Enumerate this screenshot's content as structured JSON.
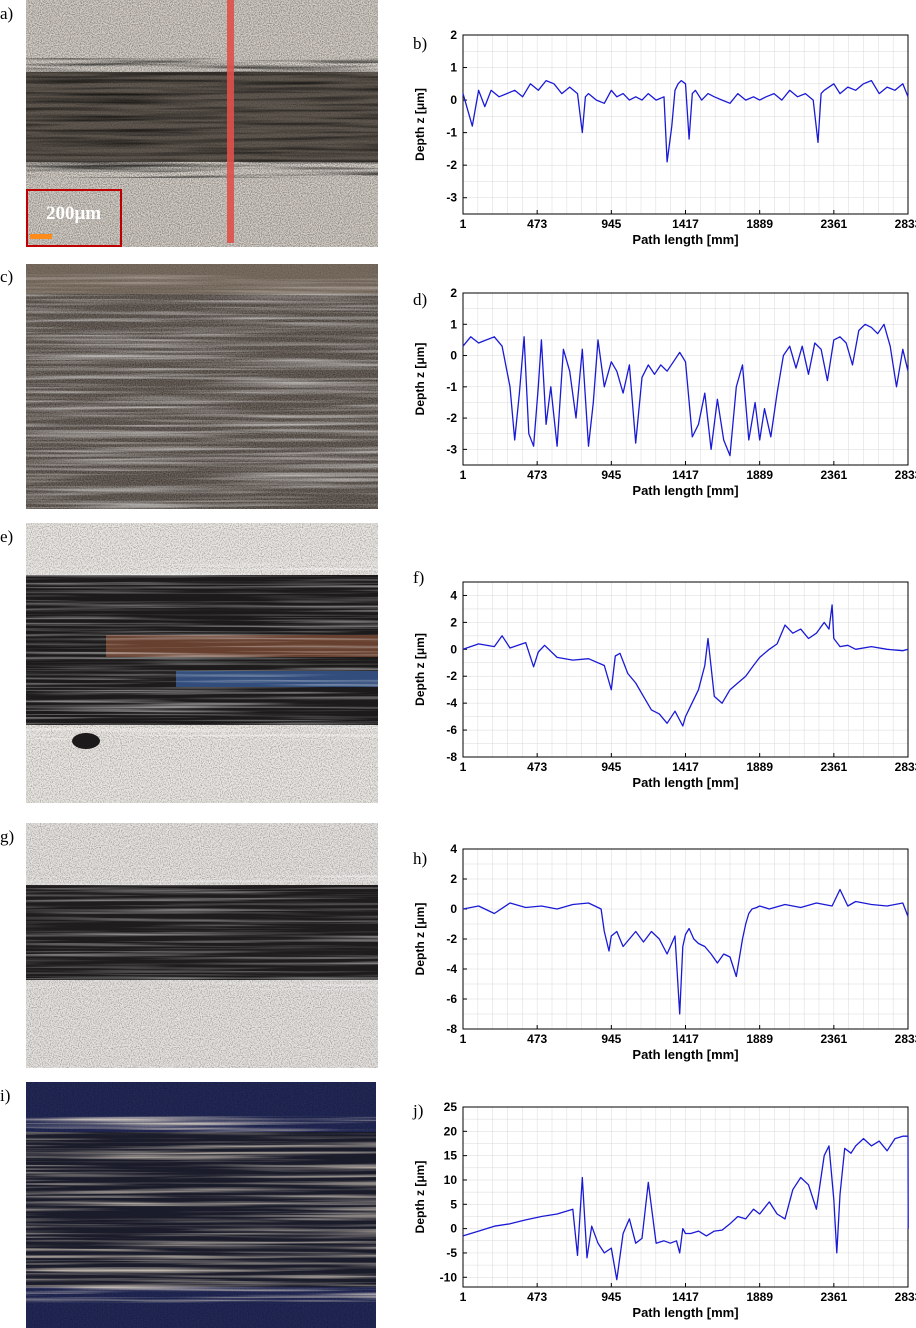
{
  "panels": [
    {
      "img_letter": "a)",
      "chart_letter": "b)"
    },
    {
      "img_letter": "c)",
      "chart_letter": "d)"
    },
    {
      "img_letter": "e)",
      "chart_letter": "f)"
    },
    {
      "img_letter": "g)",
      "chart_letter": "h)"
    },
    {
      "img_letter": "i)",
      "chart_letter": "j)"
    }
  ],
  "scale_label": "200μm",
  "colors": {
    "line": "#1a1ad6",
    "grid": "#d9d9d9",
    "scalebox": "#c00000",
    "section_line": "#e0504a"
  },
  "chart_data": [
    {
      "type": "line",
      "xlabel": "Path length [mm]",
      "ylabel": "Depth z [μm]",
      "xticks": [
        "1",
        "473",
        "945",
        "1417",
        "1889",
        "2361",
        "2833"
      ],
      "yticks": [
        2,
        1,
        0,
        -1,
        -2,
        -3
      ],
      "ylim": [
        -3.5,
        2
      ],
      "xlim": [
        1,
        2833
      ],
      "series": [
        {
          "x": [
            1,
            60,
            100,
            140,
            180,
            230,
            280,
            330,
            380,
            430,
            480,
            530,
            580,
            630,
            680,
            730,
            760,
            780,
            800,
            850,
            900,
            945,
            980,
            1020,
            1060,
            1100,
            1140,
            1180,
            1230,
            1280,
            1300,
            1330,
            1350,
            1370,
            1390,
            1417,
            1440,
            1460,
            1480,
            1520,
            1560,
            1600,
            1650,
            1700,
            1750,
            1800,
            1850,
            1889,
            1930,
            1980,
            2030,
            2080,
            2130,
            2180,
            2230,
            2260,
            2280,
            2300,
            2330,
            2361,
            2400,
            2450,
            2500,
            2550,
            2600,
            2650,
            2700,
            2750,
            2800,
            2833
          ],
          "y": [
            0.2,
            -0.8,
            0.3,
            -0.2,
            0.3,
            0.1,
            0.2,
            0.3,
            0.1,
            0.5,
            0.3,
            0.6,
            0.5,
            0.2,
            0.4,
            0.2,
            -1.0,
            0.1,
            0.2,
            0.0,
            -0.1,
            0.3,
            0.1,
            0.2,
            0.0,
            0.1,
            0.0,
            0.2,
            0.0,
            0.1,
            -1.9,
            -0.8,
            0.3,
            0.5,
            0.6,
            0.5,
            -1.2,
            0.2,
            0.3,
            0.0,
            0.2,
            0.1,
            0.0,
            -0.1,
            0.2,
            0.0,
            0.1,
            0.0,
            0.1,
            0.2,
            0.0,
            0.3,
            0.1,
            0.2,
            0.0,
            -1.3,
            0.2,
            0.3,
            0.4,
            0.5,
            0.2,
            0.4,
            0.3,
            0.5,
            0.6,
            0.2,
            0.4,
            0.3,
            0.5,
            0.1
          ]
        }
      ]
    },
    {
      "type": "line",
      "xlabel": "Path length [mm]",
      "ylabel": "Depth z [μm]",
      "xticks": [
        "1",
        "473",
        "945",
        "1417",
        "1889",
        "2361",
        "2833"
      ],
      "yticks": [
        2,
        1,
        0,
        -1,
        -2,
        -3
      ],
      "ylim": [
        -3.5,
        2
      ],
      "xlim": [
        1,
        2833
      ],
      "series": [
        {
          "x": [
            1,
            50,
            100,
            150,
            200,
            250,
            300,
            330,
            360,
            390,
            420,
            450,
            480,
            500,
            530,
            560,
            600,
            640,
            680,
            720,
            760,
            800,
            830,
            860,
            900,
            945,
            980,
            1020,
            1060,
            1100,
            1140,
            1180,
            1220,
            1260,
            1300,
            1340,
            1380,
            1417,
            1460,
            1500,
            1540,
            1580,
            1620,
            1660,
            1700,
            1740,
            1780,
            1820,
            1860,
            1889,
            1920,
            1960,
            2000,
            2040,
            2080,
            2120,
            2160,
            2200,
            2240,
            2280,
            2320,
            2361,
            2400,
            2440,
            2480,
            2520,
            2560,
            2600,
            2640,
            2680,
            2720,
            2760,
            2800,
            2833
          ],
          "y": [
            0.3,
            0.6,
            0.4,
            0.5,
            0.6,
            0.3,
            -1.0,
            -2.7,
            -1.2,
            0.6,
            -2.5,
            -2.9,
            -1.0,
            0.5,
            -2.2,
            -1.0,
            -2.9,
            0.2,
            -0.5,
            -2.0,
            0.2,
            -2.9,
            -1.5,
            0.5,
            -1.0,
            -0.2,
            -0.5,
            -1.2,
            -0.3,
            -2.8,
            -0.7,
            -0.3,
            -0.6,
            -0.3,
            -0.5,
            -0.2,
            0.1,
            -0.2,
            -2.6,
            -2.2,
            -1.2,
            -3.0,
            -1.4,
            -2.7,
            -3.2,
            -1.0,
            -0.3,
            -2.7,
            -1.5,
            -2.7,
            -1.7,
            -2.6,
            -1.2,
            0.0,
            0.3,
            -0.4,
            0.3,
            -0.6,
            0.4,
            0.2,
            -0.8,
            0.5,
            0.6,
            0.4,
            -0.3,
            0.8,
            1.0,
            0.9,
            0.7,
            1.0,
            0.3,
            -1.0,
            0.2,
            -0.5
          ]
        }
      ]
    },
    {
      "type": "line",
      "xlabel": "Path length [mm]",
      "ylabel": "Depth z [μm]",
      "xticks": [
        "1",
        "473",
        "945",
        "1417",
        "1889",
        "2361",
        "2833"
      ],
      "yticks": [
        4,
        2,
        0,
        -2,
        -4,
        -6,
        -8
      ],
      "ylim": [
        -8,
        5
      ],
      "xlim": [
        1,
        2833
      ],
      "series": [
        {
          "x": [
            1,
            100,
            200,
            250,
            300,
            400,
            450,
            480,
            520,
            600,
            700,
            800,
            900,
            945,
            970,
            1000,
            1050,
            1100,
            1150,
            1200,
            1250,
            1300,
            1350,
            1400,
            1417,
            1450,
            1500,
            1540,
            1560,
            1600,
            1650,
            1700,
            1750,
            1800,
            1850,
            1889,
            1950,
            2000,
            2050,
            2100,
            2150,
            2200,
            2250,
            2300,
            2330,
            2350,
            2361,
            2400,
            2450,
            2500,
            2600,
            2700,
            2800,
            2833
          ],
          "y": [
            0.0,
            0.4,
            0.2,
            1.0,
            0.1,
            0.5,
            -1.3,
            -0.2,
            0.3,
            -0.6,
            -0.8,
            -0.7,
            -1.2,
            -3.0,
            -0.5,
            -0.3,
            -1.8,
            -2.5,
            -3.5,
            -4.5,
            -4.8,
            -5.5,
            -4.6,
            -5.7,
            -5.0,
            -4.2,
            -3.0,
            -1.2,
            0.8,
            -3.5,
            -4.0,
            -3.0,
            -2.5,
            -2.0,
            -1.2,
            -0.6,
            0.0,
            0.4,
            1.8,
            1.2,
            1.5,
            0.8,
            1.2,
            2.0,
            1.5,
            3.3,
            0.8,
            0.2,
            0.3,
            0.0,
            0.2,
            0.0,
            -0.1,
            0.0
          ]
        }
      ]
    },
    {
      "type": "line",
      "xlabel": "Path length [mm]",
      "ylabel": "Depth z [μm]",
      "xticks": [
        "1",
        "473",
        "945",
        "1417",
        "1889",
        "2361",
        "2833"
      ],
      "yticks": [
        4,
        2,
        0,
        -2,
        -4,
        -6,
        -8
      ],
      "ylim": [
        -8,
        4
      ],
      "xlim": [
        1,
        2833
      ],
      "series": [
        {
          "x": [
            1,
            100,
            200,
            300,
            400,
            500,
            600,
            700,
            800,
            880,
            900,
            930,
            945,
            980,
            1020,
            1060,
            1100,
            1150,
            1200,
            1250,
            1300,
            1350,
            1380,
            1400,
            1417,
            1440,
            1470,
            1500,
            1540,
            1580,
            1620,
            1660,
            1700,
            1740,
            1780,
            1800,
            1820,
            1840,
            1870,
            1889,
            1950,
            2050,
            2150,
            2250,
            2350,
            2400,
            2450,
            2500,
            2600,
            2700,
            2800,
            2833
          ],
          "y": [
            0.0,
            0.2,
            -0.3,
            0.4,
            0.1,
            0.2,
            0.0,
            0.3,
            0.4,
            0.0,
            -1.5,
            -2.8,
            -1.8,
            -1.5,
            -2.5,
            -2.0,
            -1.5,
            -2.2,
            -1.5,
            -2.0,
            -3.0,
            -1.8,
            -7.0,
            -2.5,
            -1.7,
            -1.3,
            -2.0,
            -2.3,
            -2.5,
            -3.0,
            -3.6,
            -3.0,
            -3.2,
            -4.5,
            -2.0,
            -1.0,
            -0.3,
            0.0,
            0.1,
            0.2,
            0.0,
            0.3,
            0.1,
            0.4,
            0.2,
            1.3,
            0.2,
            0.5,
            0.3,
            0.2,
            0.4,
            -0.5
          ]
        }
      ]
    },
    {
      "type": "line",
      "xlabel": "Path length [mm]",
      "ylabel": "Depth z [μm]",
      "xticks": [
        "1",
        "473",
        "945",
        "1417",
        "1889",
        "2361",
        "2833"
      ],
      "yticks": [
        25,
        20,
        15,
        10,
        5,
        0,
        -5,
        -10
      ],
      "ylim": [
        -12,
        25
      ],
      "xlim": [
        1,
        2833
      ],
      "series": [
        {
          "x": [
            1,
            100,
            200,
            300,
            400,
            500,
            600,
            650,
            700,
            730,
            760,
            790,
            820,
            860,
            900,
            945,
            980,
            1020,
            1060,
            1100,
            1140,
            1180,
            1230,
            1280,
            1320,
            1360,
            1380,
            1400,
            1417,
            1450,
            1500,
            1550,
            1600,
            1650,
            1700,
            1750,
            1800,
            1850,
            1889,
            1950,
            2000,
            2050,
            2100,
            2150,
            2200,
            2250,
            2300,
            2330,
            2361,
            2380,
            2400,
            2430,
            2470,
            2500,
            2550,
            2600,
            2650,
            2700,
            2750,
            2800,
            2833,
            2834
          ],
          "y": [
            -1.5,
            -0.5,
            0.5,
            1.0,
            1.8,
            2.5,
            3.0,
            3.5,
            4.0,
            -5.5,
            10.5,
            -6.0,
            0.5,
            -3.0,
            -5.0,
            -4.0,
            -10.5,
            -1.0,
            2.0,
            -3.0,
            -2.0,
            9.5,
            -3.0,
            -2.5,
            -3.0,
            -2.5,
            -5.0,
            0.0,
            -1.0,
            -1.0,
            -0.5,
            -1.5,
            -0.5,
            -0.3,
            1.0,
            2.5,
            2.0,
            4.0,
            3.0,
            5.5,
            3.0,
            2.0,
            8.0,
            10.5,
            9.0,
            4.0,
            15.0,
            17.0,
            6.0,
            -5.0,
            7.0,
            16.5,
            15.5,
            17.0,
            18.5,
            17.0,
            18.0,
            16.0,
            18.5,
            19.0,
            19.0,
            0.0
          ]
        }
      ]
    }
  ]
}
